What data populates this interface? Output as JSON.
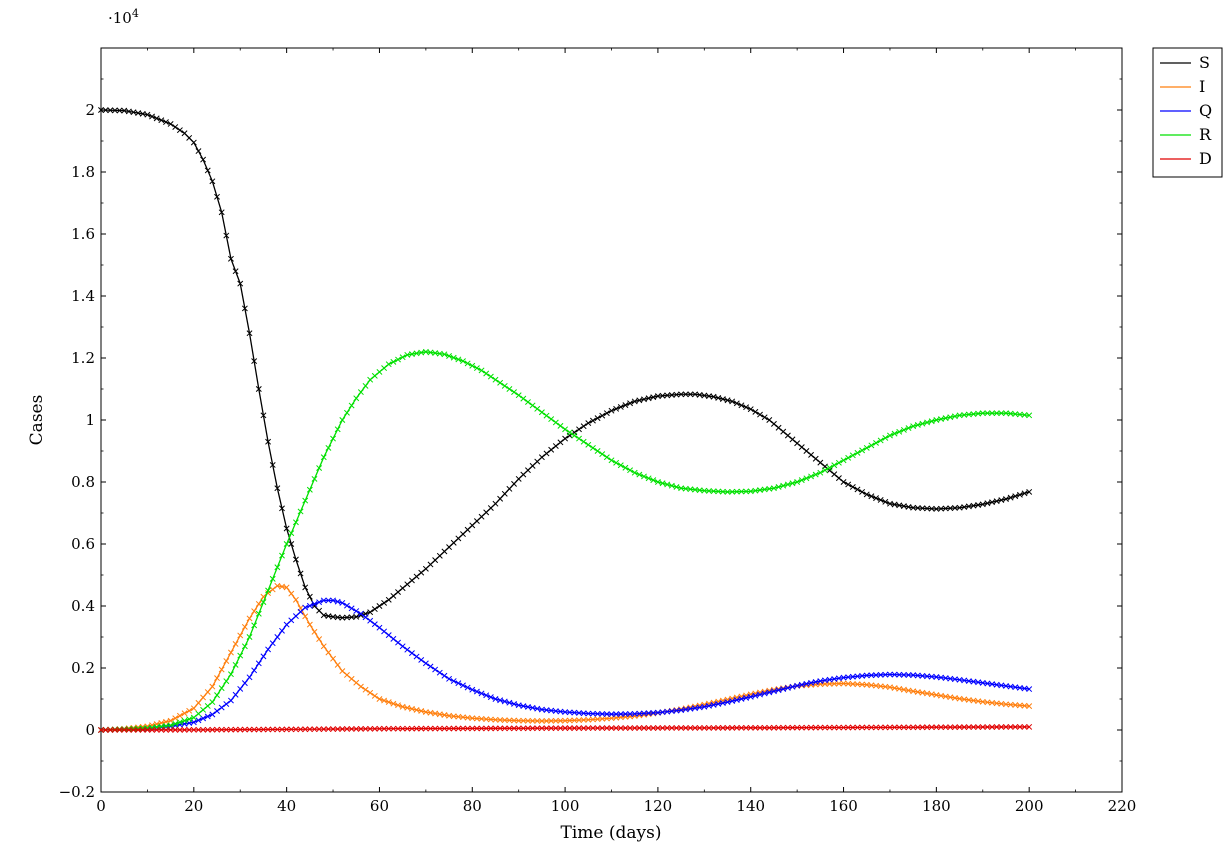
{
  "chart_data": {
    "type": "line",
    "title": "",
    "xlabel": "Time (days)",
    "ylabel": "Cases",
    "y_multiplier_label": "·10",
    "y_multiplier_exponent": "4",
    "xlim": [
      0,
      220
    ],
    "ylim": [
      -0.2,
      2.2
    ],
    "x_ticks": [
      0,
      20,
      40,
      60,
      80,
      100,
      120,
      140,
      160,
      180,
      200,
      220
    ],
    "x_tick_labels": [
      "0",
      "20",
      "40",
      "60",
      "80",
      "100",
      "120",
      "140",
      "160",
      "180",
      "200",
      "220"
    ],
    "y_ticks": [
      -0.2,
      0,
      0.2,
      0.4,
      0.6,
      0.8,
      1,
      1.2,
      1.4,
      1.6,
      1.8,
      2
    ],
    "y_tick_labels": [
      "−0.2",
      "0",
      "0.2",
      "0.4",
      "0.6",
      "0.8",
      "1",
      "1.2",
      "1.4",
      "1.6",
      "1.8",
      "2"
    ],
    "grid": false,
    "legend_position": "outside-top-right",
    "marker": "x",
    "series": [
      {
        "name": "S",
        "color": "#000000",
        "points": [
          [
            0,
            2.0
          ],
          [
            5,
            1.998
          ],
          [
            10,
            1.985
          ],
          [
            15,
            1.955
          ],
          [
            18,
            1.925
          ],
          [
            20,
            1.895
          ],
          [
            22,
            1.84
          ],
          [
            24,
            1.77
          ],
          [
            26,
            1.67
          ],
          [
            28,
            1.52
          ],
          [
            30,
            1.44
          ],
          [
            32,
            1.28
          ],
          [
            34,
            1.1
          ],
          [
            36,
            0.93
          ],
          [
            38,
            0.78
          ],
          [
            40,
            0.65
          ],
          [
            42,
            0.55
          ],
          [
            44,
            0.46
          ],
          [
            46,
            0.4
          ],
          [
            48,
            0.37
          ],
          [
            50,
            0.365
          ],
          [
            52,
            0.362
          ],
          [
            55,
            0.365
          ],
          [
            58,
            0.38
          ],
          [
            62,
            0.42
          ],
          [
            66,
            0.47
          ],
          [
            70,
            0.52
          ],
          [
            75,
            0.59
          ],
          [
            80,
            0.66
          ],
          [
            85,
            0.73
          ],
          [
            90,
            0.81
          ],
          [
            95,
            0.88
          ],
          [
            100,
            0.94
          ],
          [
            105,
            0.99
          ],
          [
            110,
            1.03
          ],
          [
            115,
            1.06
          ],
          [
            120,
            1.077
          ],
          [
            125,
            1.083
          ],
          [
            128,
            1.083
          ],
          [
            132,
            1.075
          ],
          [
            136,
            1.06
          ],
          [
            140,
            1.035
          ],
          [
            144,
            1.0
          ],
          [
            148,
            0.95
          ],
          [
            152,
            0.9
          ],
          [
            156,
            0.85
          ],
          [
            160,
            0.8
          ],
          [
            165,
            0.76
          ],
          [
            170,
            0.73
          ],
          [
            175,
            0.717
          ],
          [
            180,
            0.713
          ],
          [
            185,
            0.717
          ],
          [
            190,
            0.728
          ],
          [
            195,
            0.745
          ],
          [
            200,
            0.768
          ]
        ]
      },
      {
        "name": "I",
        "color": "#ff7f0e",
        "points": [
          [
            0,
            0.0
          ],
          [
            5,
            0.004
          ],
          [
            10,
            0.012
          ],
          [
            15,
            0.03
          ],
          [
            20,
            0.07
          ],
          [
            24,
            0.14
          ],
          [
            28,
            0.25
          ],
          [
            32,
            0.36
          ],
          [
            35,
            0.43
          ],
          [
            38,
            0.465
          ],
          [
            40,
            0.46
          ],
          [
            42,
            0.42
          ],
          [
            45,
            0.34
          ],
          [
            48,
            0.27
          ],
          [
            52,
            0.19
          ],
          [
            56,
            0.14
          ],
          [
            60,
            0.1
          ],
          [
            65,
            0.075
          ],
          [
            70,
            0.058
          ],
          [
            75,
            0.046
          ],
          [
            80,
            0.038
          ],
          [
            85,
            0.033
          ],
          [
            90,
            0.03
          ],
          [
            95,
            0.029
          ],
          [
            100,
            0.03
          ],
          [
            105,
            0.033
          ],
          [
            110,
            0.038
          ],
          [
            115,
            0.045
          ],
          [
            120,
            0.055
          ],
          [
            125,
            0.067
          ],
          [
            130,
            0.082
          ],
          [
            135,
            0.098
          ],
          [
            140,
            0.115
          ],
          [
            145,
            0.13
          ],
          [
            150,
            0.142
          ],
          [
            155,
            0.148
          ],
          [
            160,
            0.15
          ],
          [
            165,
            0.146
          ],
          [
            170,
            0.138
          ],
          [
            175,
            0.125
          ],
          [
            180,
            0.113
          ],
          [
            185,
            0.101
          ],
          [
            190,
            0.091
          ],
          [
            195,
            0.083
          ],
          [
            200,
            0.077
          ]
        ]
      },
      {
        "name": "Q",
        "color": "#0000ff",
        "points": [
          [
            0,
            0.0
          ],
          [
            5,
            0.002
          ],
          [
            10,
            0.005
          ],
          [
            15,
            0.012
          ],
          [
            20,
            0.025
          ],
          [
            24,
            0.05
          ],
          [
            28,
            0.095
          ],
          [
            32,
            0.17
          ],
          [
            36,
            0.26
          ],
          [
            40,
            0.34
          ],
          [
            44,
            0.395
          ],
          [
            48,
            0.418
          ],
          [
            50,
            0.418
          ],
          [
            52,
            0.41
          ],
          [
            56,
            0.375
          ],
          [
            60,
            0.33
          ],
          [
            65,
            0.27
          ],
          [
            70,
            0.215
          ],
          [
            75,
            0.165
          ],
          [
            80,
            0.13
          ],
          [
            85,
            0.1
          ],
          [
            90,
            0.08
          ],
          [
            95,
            0.066
          ],
          [
            100,
            0.058
          ],
          [
            105,
            0.053
          ],
          [
            110,
            0.051
          ],
          [
            115,
            0.052
          ],
          [
            120,
            0.056
          ],
          [
            125,
            0.064
          ],
          [
            130,
            0.075
          ],
          [
            135,
            0.09
          ],
          [
            140,
            0.107
          ],
          [
            145,
            0.125
          ],
          [
            150,
            0.143
          ],
          [
            155,
            0.158
          ],
          [
            160,
            0.169
          ],
          [
            165,
            0.176
          ],
          [
            170,
            0.179
          ],
          [
            175,
            0.177
          ],
          [
            180,
            0.171
          ],
          [
            185,
            0.162
          ],
          [
            190,
            0.152
          ],
          [
            195,
            0.142
          ],
          [
            200,
            0.132
          ]
        ]
      },
      {
        "name": "R",
        "color": "#00e000",
        "points": [
          [
            0,
            0.0
          ],
          [
            5,
            0.002
          ],
          [
            10,
            0.006
          ],
          [
            15,
            0.015
          ],
          [
            20,
            0.04
          ],
          [
            24,
            0.09
          ],
          [
            28,
            0.18
          ],
          [
            32,
            0.3
          ],
          [
            36,
            0.45
          ],
          [
            40,
            0.6
          ],
          [
            42,
            0.67
          ],
          [
            44,
            0.74
          ],
          [
            46,
            0.81
          ],
          [
            48,
            0.88
          ],
          [
            50,
            0.94
          ],
          [
            52,
            1.0
          ],
          [
            55,
            1.07
          ],
          [
            58,
            1.13
          ],
          [
            62,
            1.18
          ],
          [
            66,
            1.21
          ],
          [
            70,
            1.22
          ],
          [
            74,
            1.212
          ],
          [
            78,
            1.19
          ],
          [
            82,
            1.16
          ],
          [
            86,
            1.12
          ],
          [
            90,
            1.08
          ],
          [
            95,
            1.025
          ],
          [
            100,
            0.97
          ],
          [
            105,
            0.92
          ],
          [
            110,
            0.87
          ],
          [
            115,
            0.83
          ],
          [
            120,
            0.8
          ],
          [
            125,
            0.78
          ],
          [
            130,
            0.772
          ],
          [
            135,
            0.768
          ],
          [
            140,
            0.77
          ],
          [
            145,
            0.78
          ],
          [
            150,
            0.8
          ],
          [
            155,
            0.83
          ],
          [
            160,
            0.87
          ],
          [
            165,
            0.91
          ],
          [
            170,
            0.95
          ],
          [
            175,
            0.98
          ],
          [
            180,
            1.0
          ],
          [
            185,
            1.015
          ],
          [
            190,
            1.022
          ],
          [
            195,
            1.022
          ],
          [
            200,
            1.015
          ]
        ]
      },
      {
        "name": "D",
        "color": "#e00000",
        "points": [
          [
            0,
            0.0
          ],
          [
            20,
            0.0005
          ],
          [
            40,
            0.002
          ],
          [
            60,
            0.004
          ],
          [
            80,
            0.005
          ],
          [
            100,
            0.006
          ],
          [
            120,
            0.0065
          ],
          [
            140,
            0.007
          ],
          [
            160,
            0.008
          ],
          [
            180,
            0.009
          ],
          [
            200,
            0.01
          ]
        ]
      }
    ]
  }
}
